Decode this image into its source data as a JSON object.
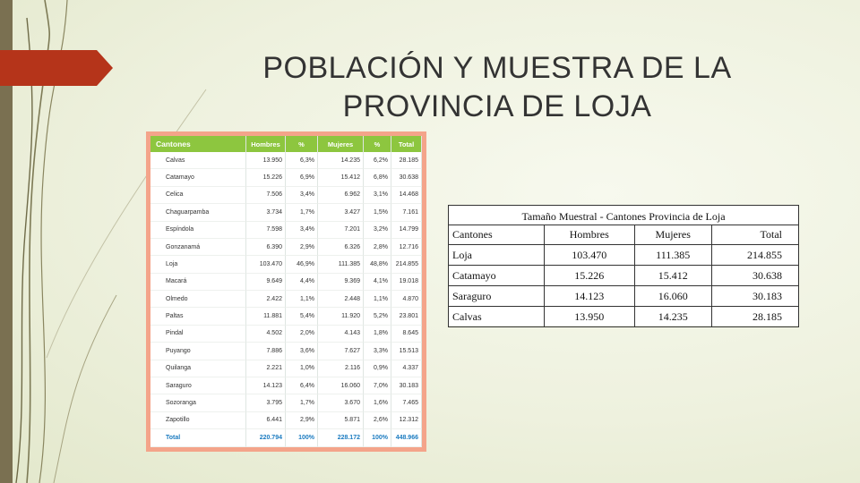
{
  "slide": {
    "title_line1": "POBLACIÓN Y MUESTRA DE LA",
    "title_line2": "PROVINCIA DE LOJA",
    "colors": {
      "accent_red": "#b5341a",
      "side_bar": "#7a7051",
      "table_header_green": "#8dc63f",
      "table_frame": "#f4a48a"
    }
  },
  "population_table": {
    "headers": [
      "Cantones",
      "Hombres",
      "%",
      "Mujeres",
      "%",
      "Total"
    ],
    "rows": [
      [
        "Calvas",
        "13.950",
        "6,3%",
        "14.235",
        "6,2%",
        "28.185"
      ],
      [
        "Catamayo",
        "15.226",
        "6,9%",
        "15.412",
        "6,8%",
        "30.638"
      ],
      [
        "Celica",
        "7.506",
        "3,4%",
        "6.962",
        "3,1%",
        "14.468"
      ],
      [
        "Chaguarpamba",
        "3.734",
        "1,7%",
        "3.427",
        "1,5%",
        "7.161"
      ],
      [
        "Espíndola",
        "7.598",
        "3,4%",
        "7.201",
        "3,2%",
        "14.799"
      ],
      [
        "Gonzanamá",
        "6.390",
        "2,9%",
        "6.326",
        "2,8%",
        "12.716"
      ],
      [
        "Loja",
        "103.470",
        "46,9%",
        "111.385",
        "48,8%",
        "214.855"
      ],
      [
        "Macará",
        "9.649",
        "4,4%",
        "9.369",
        "4,1%",
        "19.018"
      ],
      [
        "Olmedo",
        "2.422",
        "1,1%",
        "2.448",
        "1,1%",
        "4.870"
      ],
      [
        "Paltas",
        "11.881",
        "5,4%",
        "11.920",
        "5,2%",
        "23.801"
      ],
      [
        "Pindal",
        "4.502",
        "2,0%",
        "4.143",
        "1,8%",
        "8.645"
      ],
      [
        "Puyango",
        "7.886",
        "3,6%",
        "7.627",
        "3,3%",
        "15.513"
      ],
      [
        "Quilanga",
        "2.221",
        "1,0%",
        "2.116",
        "0,9%",
        "4.337"
      ],
      [
        "Saraguro",
        "14.123",
        "6,4%",
        "16.060",
        "7,0%",
        "30.183"
      ],
      [
        "Sozoranga",
        "3.795",
        "1,7%",
        "3.670",
        "1,6%",
        "7.465"
      ],
      [
        "Zapotillo",
        "6.441",
        "2,9%",
        "5.871",
        "2,6%",
        "12.312"
      ]
    ],
    "total_row": [
      "Total",
      "220.794",
      "100%",
      "228.172",
      "100%",
      "448.966"
    ]
  },
  "sample_table": {
    "caption": "Tamaño Muestral - Cantones Provincia de Loja",
    "headers": [
      "Cantones",
      "Hombres",
      "Mujeres",
      "Total"
    ],
    "rows": [
      [
        "Loja",
        "103.470",
        "111.385",
        "214.855"
      ],
      [
        "Catamayo",
        "15.226",
        "15.412",
        "30.638"
      ],
      [
        "Saraguro",
        "14.123",
        "16.060",
        "30.183"
      ],
      [
        "Calvas",
        "13.950",
        "14.235",
        "28.185"
      ]
    ]
  }
}
